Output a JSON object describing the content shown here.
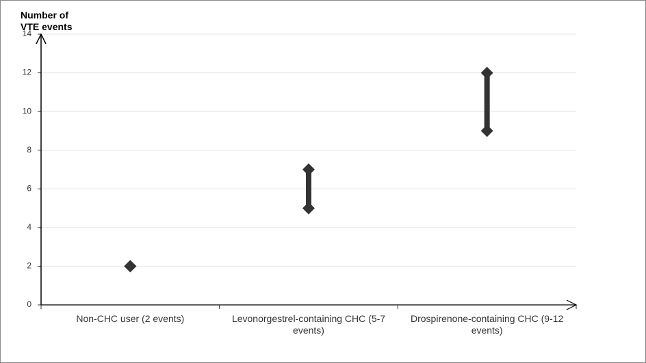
{
  "chart_data": {
    "type": "range",
    "y_label": "Number of VTE events",
    "categories": [
      "Non-CHC user (2 events)",
      "Levonorgestrel-containing CHC (5-7 events)",
      "Drospirenone-containing CHC (9-12 events)"
    ],
    "low": [
      2,
      5,
      9
    ],
    "high": [
      2,
      7,
      12
    ],
    "color": "#333333",
    "ylim": [
      0,
      14
    ],
    "yticks": [
      0,
      2,
      4,
      6,
      8,
      10,
      12,
      14
    ],
    "grid": true
  }
}
